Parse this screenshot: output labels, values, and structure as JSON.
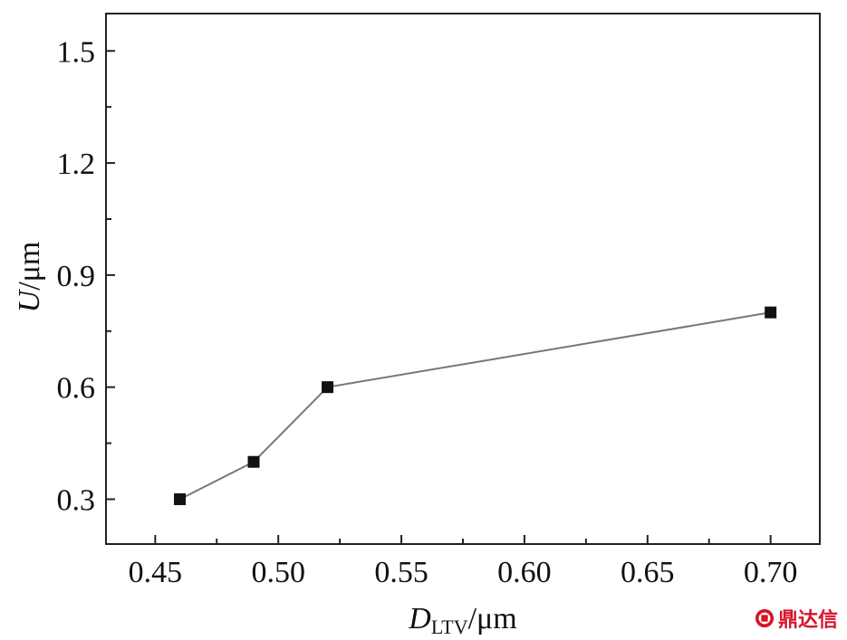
{
  "chart_data": {
    "type": "line",
    "xlabel_main": "D",
    "xlabel_sub": "LTV",
    "xlabel_unit": "/μm",
    "ylabel_main": "U",
    "ylabel_unit": "/μm",
    "xlim": [
      0.43,
      0.72
    ],
    "ylim": [
      0.18,
      1.6
    ],
    "xticks": [
      0.45,
      0.5,
      0.55,
      0.6,
      0.65,
      0.7
    ],
    "xtick_labels": [
      "0.45",
      "0.50",
      "0.55",
      "0.60",
      "0.65",
      "0.70"
    ],
    "yticks": [
      0.3,
      0.6,
      0.9,
      1.2,
      1.5
    ],
    "ytick_labels": [
      "0.3",
      "0.6",
      "0.9",
      "1.2",
      "1.5"
    ],
    "grid": false,
    "series": [
      {
        "x": [
          0.46,
          0.49,
          0.52,
          0.7
        ],
        "y": [
          0.3,
          0.4,
          0.6,
          0.8
        ],
        "line_color": "#777777",
        "marker_color": "#111111",
        "marker": "square"
      }
    ]
  },
  "watermark": {
    "text": "鼎达信",
    "color": "#d7142a"
  }
}
